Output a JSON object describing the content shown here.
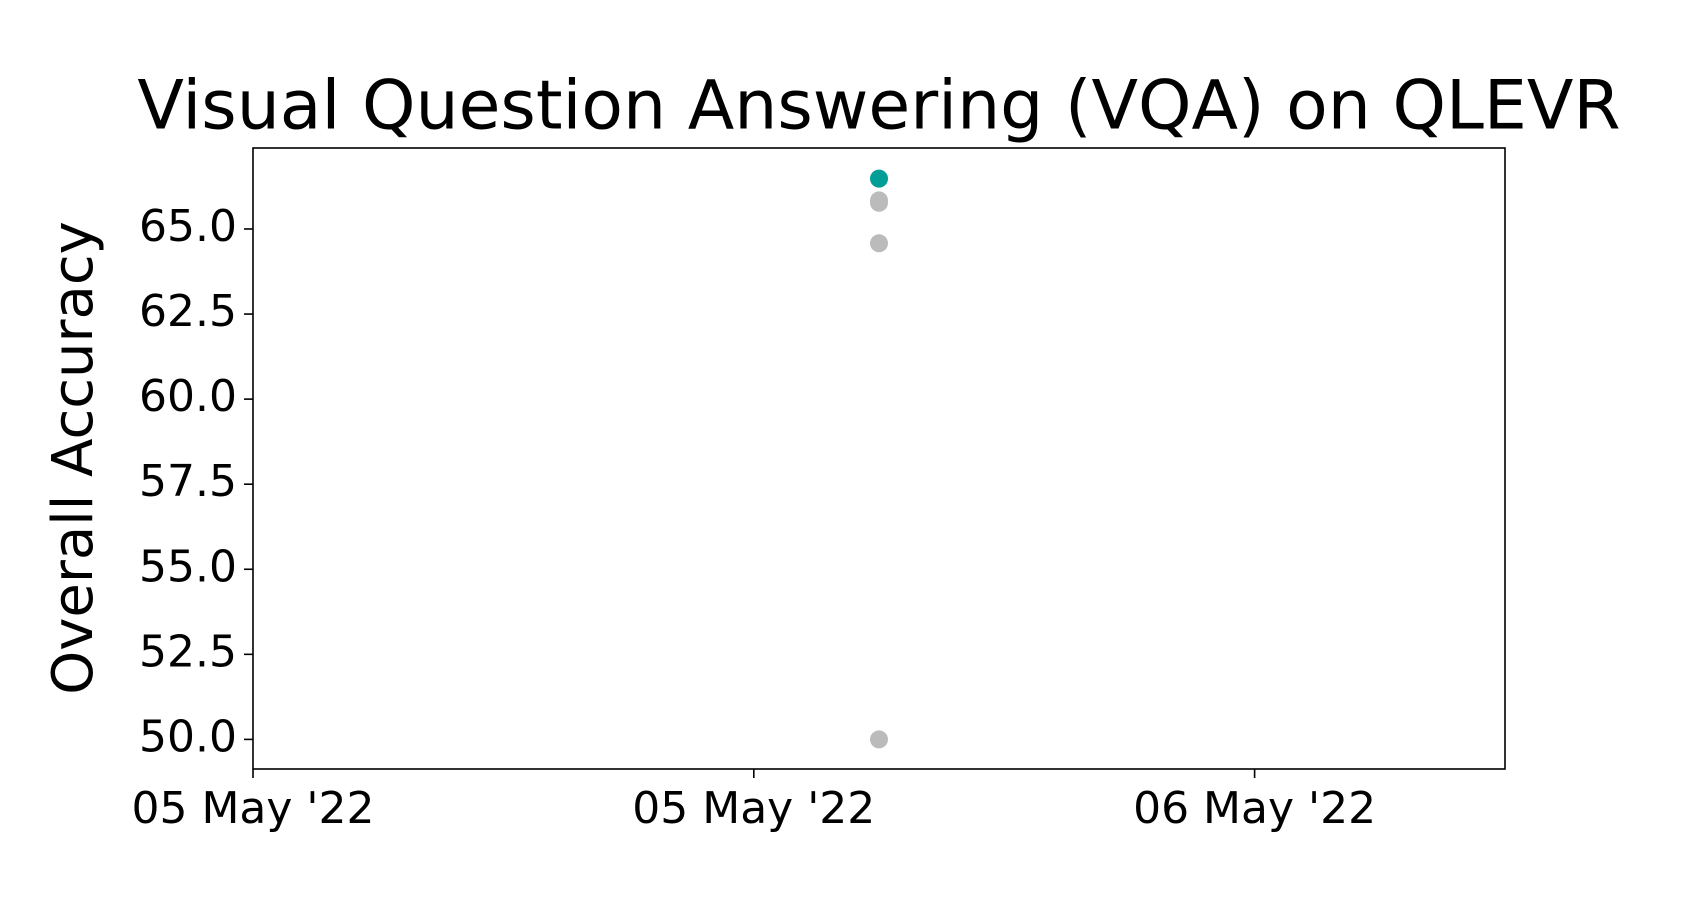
{
  "chart_data": {
    "type": "scatter",
    "title": "Visual Question Answering (VQA) on QLEVR",
    "y_label": "Overall Accuracy",
    "x": [
      5.625,
      5.625,
      5.625,
      5.625,
      5.625
    ],
    "values": [
      66.48,
      65.84,
      65.77,
      64.58,
      50.0
    ],
    "colors": [
      "#009e96",
      "#bbbbbb",
      "#bbbbbb",
      "#bbbbbb",
      "#bbbbbb"
    ],
    "xlim": [
      5.0,
      6.25
    ],
    "xticks": [
      {
        "value": 5.0,
        "label": "05 May '22"
      },
      {
        "value": 5.5,
        "label": "05 May '22"
      },
      {
        "value": 6.0,
        "label": "06 May '22"
      }
    ],
    "ylim": [
      49.13,
      67.38
    ],
    "yticks": [
      {
        "value": 50,
        "label": "50.0"
      },
      {
        "value": 52.5,
        "label": "52.5"
      },
      {
        "value": 55,
        "label": "55.0"
      },
      {
        "value": 57.5,
        "label": "57.5"
      },
      {
        "value": 60,
        "label": "60.0"
      },
      {
        "value": 62.5,
        "label": "62.5"
      },
      {
        "value": 65,
        "label": "65.0"
      }
    ],
    "grid": false
  }
}
